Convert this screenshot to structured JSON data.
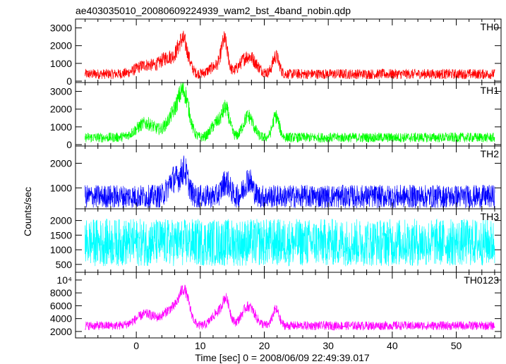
{
  "chart_data": {
    "type": "line",
    "title": "ae403035010_20080609224939_wam2_bst_4band_nobin.qdp",
    "xlabel": "Time [sec] 0 = 2008/06/09 22:49:39.017",
    "ylabel": "Counts/sec",
    "xlim": [
      -9.5,
      57
    ],
    "x_ticks": [
      0,
      10,
      20,
      30,
      40,
      50
    ],
    "x_data_range": [
      -8,
      56
    ],
    "grid": false,
    "legend": "none",
    "panels": [
      {
        "name": "TH0",
        "color": "#ff0000",
        "ylim": [
          -80,
          3500
        ],
        "y_ticks": [
          0,
          1000,
          2000,
          3000
        ],
        "y_tick_labels": [
          "0",
          "1000",
          "2000",
          "3000"
        ],
        "baseline": 400,
        "noise": 230,
        "bursts": [
          {
            "t": 1.5,
            "amp": 500,
            "w": 1.5
          },
          {
            "t": 5,
            "amp": 900,
            "w": 1.2
          },
          {
            "t": 7.3,
            "amp": 1800,
            "w": 0.8
          },
          {
            "t": 12.5,
            "amp": 450,
            "w": 1
          },
          {
            "t": 13.8,
            "amp": 1700,
            "w": 0.5
          },
          {
            "t": 17.5,
            "amp": 1000,
            "w": 1.2
          },
          {
            "t": 21.8,
            "amp": 1000,
            "w": 0.5
          }
        ]
      },
      {
        "name": "TH1",
        "color": "#00ff00",
        "ylim": [
          -80,
          3500
        ],
        "y_ticks": [
          0,
          1000,
          2000,
          3000
        ],
        "y_tick_labels": [
          "0",
          "1000",
          "2000",
          "3000"
        ],
        "baseline": 400,
        "noise": 220,
        "bursts": [
          {
            "t": 1.5,
            "amp": 800,
            "w": 1.5
          },
          {
            "t": 6,
            "amp": 1300,
            "w": 1.2
          },
          {
            "t": 7.5,
            "amp": 2000,
            "w": 0.8
          },
          {
            "t": 12.5,
            "amp": 800,
            "w": 0.8
          },
          {
            "t": 14,
            "amp": 1500,
            "w": 0.6
          },
          {
            "t": 17.5,
            "amp": 1200,
            "w": 0.8
          },
          {
            "t": 21.8,
            "amp": 1200,
            "w": 0.5
          }
        ]
      },
      {
        "name": "TH2",
        "color": "#0000ff",
        "ylim": [
          150,
          2700
        ],
        "y_ticks": [
          1000,
          2000
        ],
        "y_tick_labels": [
          "1000",
          "2000"
        ],
        "baseline": 650,
        "noise": 380,
        "bursts": [
          {
            "t": 5.8,
            "amp": 700,
            "w": 0.8
          },
          {
            "t": 7.5,
            "amp": 1000,
            "w": 0.6
          },
          {
            "t": 14,
            "amp": 600,
            "w": 0.6
          },
          {
            "t": 17.5,
            "amp": 700,
            "w": 0.6
          }
        ]
      },
      {
        "name": "TH3",
        "color": "#00ffff",
        "ylim": [
          230,
          2400
        ],
        "y_ticks": [
          500,
          1000,
          1500,
          2000
        ],
        "y_tick_labels": [
          "500",
          "1000",
          "1500",
          "2000"
        ],
        "baseline": 1250,
        "noise": 650,
        "bursts": []
      },
      {
        "name": "TH0123",
        "color": "#ff00ff",
        "ylim": [
          1000,
          11200
        ],
        "y_ticks": [
          2000,
          4000,
          6000,
          8000,
          10000
        ],
        "y_tick_labels": [
          "2000",
          "4000",
          "6000",
          "8000",
          "10⁴"
        ],
        "baseline": 2900,
        "noise": 550,
        "bursts": [
          {
            "t": 1.5,
            "amp": 1800,
            "w": 1.5
          },
          {
            "t": 5.5,
            "amp": 2500,
            "w": 1.2
          },
          {
            "t": 7.5,
            "amp": 5000,
            "w": 0.8
          },
          {
            "t": 12.5,
            "amp": 1800,
            "w": 0.8
          },
          {
            "t": 14,
            "amp": 4000,
            "w": 0.6
          },
          {
            "t": 17.5,
            "amp": 3000,
            "w": 1
          },
          {
            "t": 21.8,
            "amp": 2500,
            "w": 0.5
          }
        ]
      }
    ]
  }
}
